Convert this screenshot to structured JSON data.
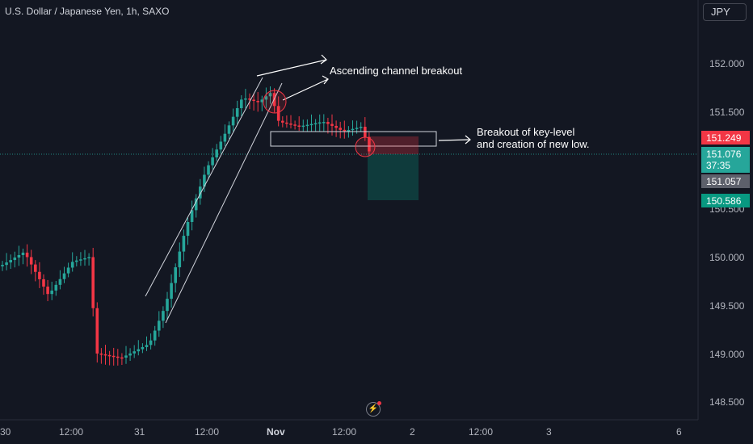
{
  "symbol_title": "U.S. Dollar / Japanese Yen, 1h, SAXO",
  "currency_button": "JPY",
  "price_axis": {
    "labels": [
      {
        "text": "152.000",
        "value": 152.0
      },
      {
        "text": "151.500",
        "value": 151.5
      },
      {
        "text": "150.500",
        "value": 150.5
      },
      {
        "text": "150.000",
        "value": 150.0
      },
      {
        "text": "149.500",
        "value": 149.5
      },
      {
        "text": "149.000",
        "value": 149.0
      },
      {
        "text": "148.500",
        "value": 148.5
      }
    ]
  },
  "time_axis": {
    "labels": [
      "30",
      "12:00",
      "31",
      "12:00",
      "Nov",
      "12:00",
      "2",
      "12:00",
      "3",
      "6"
    ]
  },
  "price_tags": {
    "sl": "151.249",
    "current": "151.076",
    "countdown": "37:35",
    "entry": "151.057",
    "tp": "150.586"
  },
  "annotations": {
    "channel": "Ascending channel breakout",
    "breakout_line1": "Breakout of key-level",
    "breakout_line2": "and creation of new low."
  },
  "colors": {
    "background": "#131722",
    "up": "#26a69a",
    "down": "#f23645",
    "stop_zone": "#f23645",
    "target_zone": "#089981"
  },
  "icons": {
    "flash": "lightning-icon"
  }
}
